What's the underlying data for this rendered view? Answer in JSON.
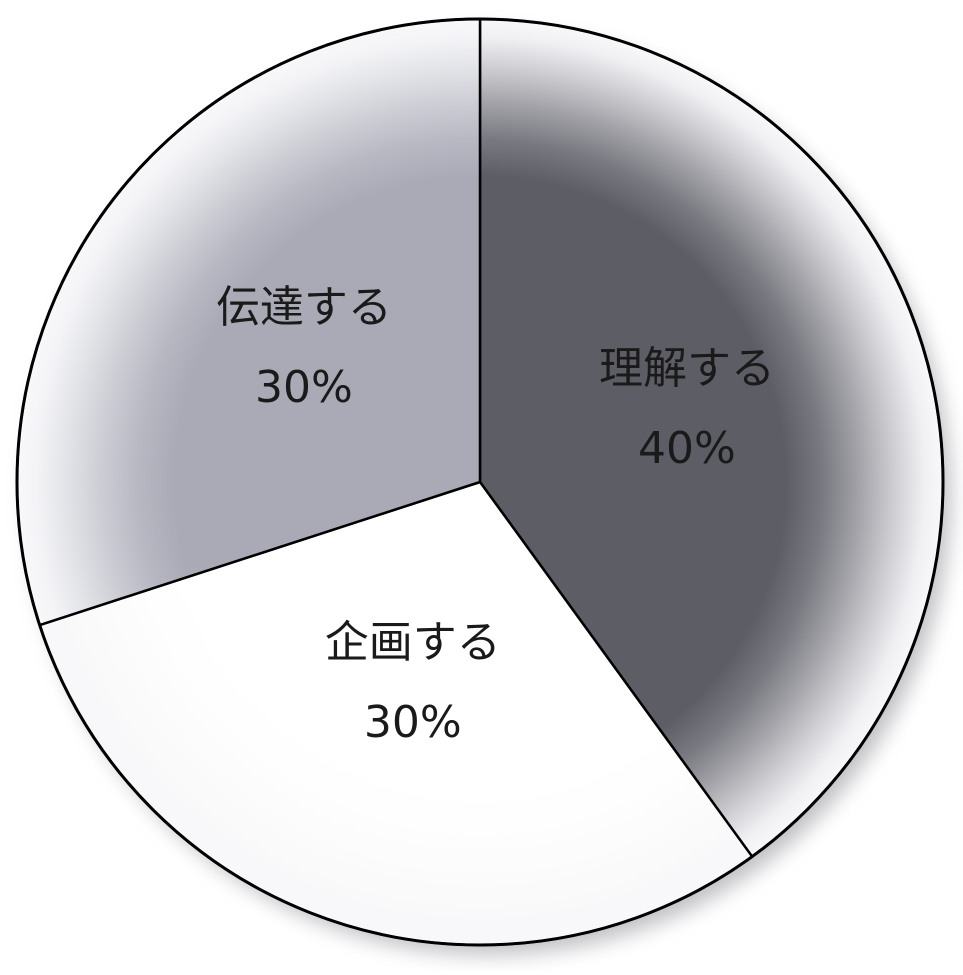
{
  "chart_data": {
    "type": "pie",
    "title": "",
    "start_angle_deg": 0,
    "direction": "clockwise",
    "slices": [
      {
        "label": "理解する",
        "value": 40,
        "value_label": "40%",
        "color": "#5d5d66"
      },
      {
        "label": "企画する",
        "value": 30,
        "value_label": "30%",
        "color": "#ffffff"
      },
      {
        "label": "伝達する",
        "value": 30,
        "value_label": "30%",
        "color": "#a9aab6"
      }
    ],
    "legend": "none"
  }
}
